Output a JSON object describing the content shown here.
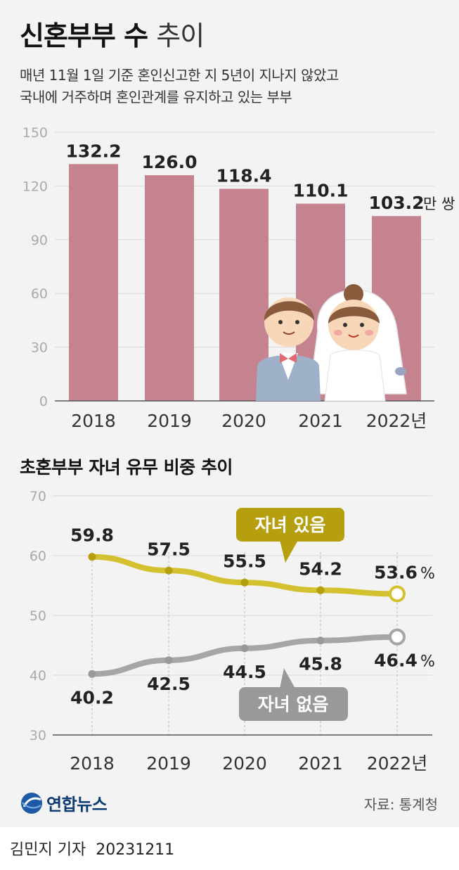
{
  "header": {
    "title_bold": "신혼부부 수",
    "title_light": "추이",
    "subtitle_line1": "매년 11월 1일 기준 혼인신고한 지 5년이 지나지 않았고",
    "subtitle_line2": "국내에 거주하며 혼인관계를 유지하고 있는 부부"
  },
  "chart_data": [
    {
      "type": "bar",
      "categories": [
        "2018",
        "2019",
        "2020",
        "2021",
        "2022년"
      ],
      "values": [
        132.2,
        126.0,
        118.4,
        110.1,
        103.2
      ],
      "value_labels": [
        "132.2",
        "126.0",
        "118.4",
        "110.1",
        "103.2"
      ],
      "unit": "만 쌍",
      "ylim": [
        0,
        150
      ],
      "yticks": [
        "0",
        "30",
        "60",
        "90",
        "120",
        "150"
      ],
      "bar_color": "#c5828f",
      "grid": true
    },
    {
      "type": "line",
      "title": "초혼부부 자녀 유무 비중 추이",
      "categories": [
        "2018",
        "2019",
        "2020",
        "2021",
        "2022년"
      ],
      "ylim": [
        30,
        70
      ],
      "yticks": [
        "30",
        "40",
        "50",
        "60",
        "70"
      ],
      "unit": "%",
      "series": [
        {
          "name": "자녀 있음",
          "values": [
            59.8,
            57.5,
            55.5,
            54.2,
            53.6
          ],
          "value_labels": [
            "59.8",
            "57.5",
            "55.5",
            "54.2",
            "53.6"
          ],
          "color": "#d3c12f",
          "label_color": "#b59f0f"
        },
        {
          "name": "자녀 없음",
          "values": [
            40.2,
            42.5,
            44.5,
            45.8,
            46.4
          ],
          "value_labels": [
            "40.2",
            "42.5",
            "44.5",
            "45.8",
            "46.4"
          ],
          "color": "#a6a6a6",
          "label_color": "#999999"
        }
      ]
    }
  ],
  "footer": {
    "logo": "연합뉴스",
    "source": "자료: 통계청",
    "reporter": "김민지 기자",
    "date": "20231211"
  }
}
